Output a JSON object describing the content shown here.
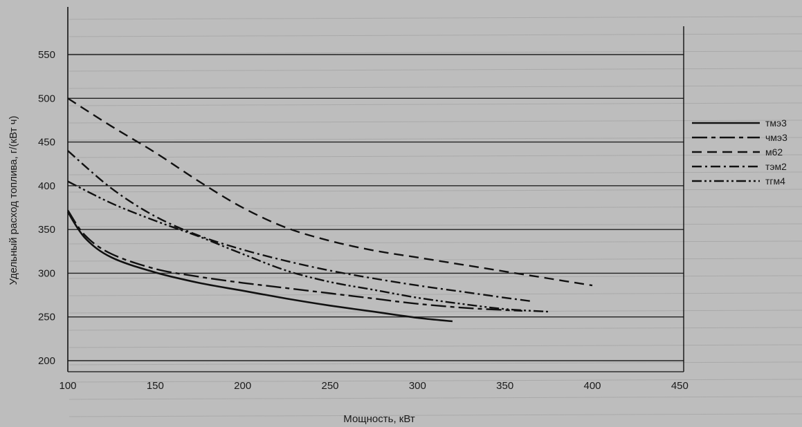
{
  "chart_data": {
    "type": "line",
    "title": "",
    "xlabel": "Мощность, кВт",
    "ylabel": "Удельный расход топлива, г/(кВт ч)",
    "xlim": [
      100,
      450
    ],
    "ylim": [
      200,
      570
    ],
    "x_ticks": [
      100,
      150,
      200,
      250,
      300,
      350,
      400,
      450
    ],
    "y_ticks": [
      200,
      250,
      300,
      350,
      400,
      450,
      500,
      550
    ],
    "grid": "horizontal",
    "legend_position": "right",
    "series": [
      {
        "name": "тмэ3",
        "dash": "solid",
        "x": [
          100,
          110,
          125,
          150,
          175,
          200,
          225,
          250,
          275,
          300,
          320
        ],
        "y": [
          370,
          340,
          318,
          301,
          289,
          280,
          271,
          263,
          256,
          249,
          245
        ]
      },
      {
        "name": "чмэ3",
        "dash": "long-short",
        "x": [
          100,
          110,
          125,
          150,
          175,
          200,
          225,
          250,
          275,
          300,
          330,
          360
        ],
        "y": [
          372,
          343,
          322,
          305,
          296,
          289,
          283,
          277,
          271,
          265,
          260,
          257
        ]
      },
      {
        "name": "м62",
        "dash": "dash",
        "x": [
          100,
          125,
          150,
          175,
          200,
          225,
          250,
          275,
          300,
          325,
          350,
          375,
          400
        ],
        "y": [
          500,
          468,
          438,
          405,
          375,
          352,
          337,
          326,
          318,
          310,
          302,
          294,
          286
        ]
      },
      {
        "name": "тэм2",
        "dash": "dash-dot",
        "x": [
          100,
          125,
          150,
          175,
          200,
          225,
          250,
          275,
          300,
          325,
          350,
          365
        ],
        "y": [
          440,
          397,
          365,
          343,
          327,
          314,
          303,
          294,
          286,
          279,
          272,
          268
        ]
      },
      {
        "name": "тгм4",
        "dash": "dash-dot-dot",
        "x": [
          100,
          125,
          150,
          175,
          200,
          225,
          250,
          275,
          300,
          325,
          350,
          375
        ],
        "y": [
          405,
          380,
          360,
          342,
          322,
          303,
          290,
          281,
          272,
          265,
          259,
          256
        ]
      }
    ]
  }
}
